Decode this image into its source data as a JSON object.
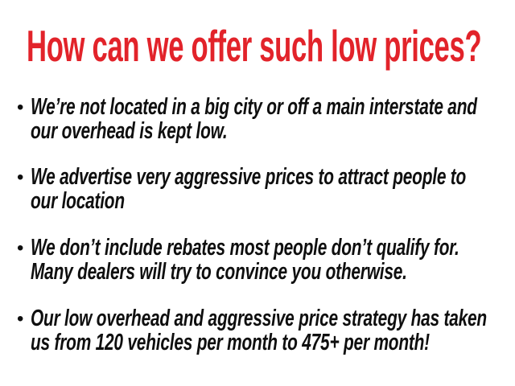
{
  "slide": {
    "background_color": "#ffffff",
    "heading": {
      "text": "How can we offer such low prices?",
      "color": "#e2232a"
    },
    "text_color": "#0f0f0f",
    "bullet_marker": "•",
    "bullets": [
      {
        "lines": [
          "We’re not located in a big city or off a main interstate and",
          "our overhead is kept low."
        ]
      },
      {
        "lines": [
          "We advertise very aggressive prices to attract people to",
          "our location"
        ]
      },
      {
        "lines": [
          "We don’t include rebates most people don’t qualify for.",
          "Many dealers will try to convince you otherwise."
        ]
      },
      {
        "lines": [
          "Our low overhead and aggressive price strategy has taken",
          "us from 120 vehicles per month to 475+ per month!"
        ]
      }
    ]
  }
}
